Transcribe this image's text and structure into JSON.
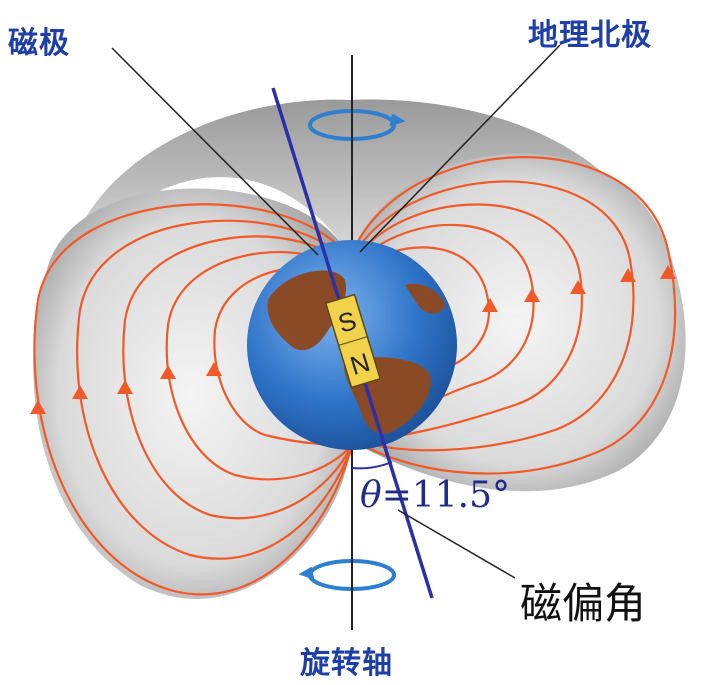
{
  "labels": {
    "magnetic_pole": "磁极",
    "geographic_north_pole": "地理北极",
    "rotation_axis": "旋转轴",
    "declination": "磁偏角",
    "angle_symbol": "θ",
    "angle_value": "=11.5°",
    "magnet_s": "S",
    "magnet_n": "N"
  },
  "colors": {
    "field_line": "#f05a28",
    "ocean": "#2f74c8",
    "land": "#8a4a26",
    "magnet": "#f2d24a",
    "magnetic_axis": "#2b2fa8",
    "label_blue": "#1f3fa8",
    "torus_shade": "#bdbdbd"
  },
  "diagram": {
    "declination_angle_deg": 11.5
  }
}
